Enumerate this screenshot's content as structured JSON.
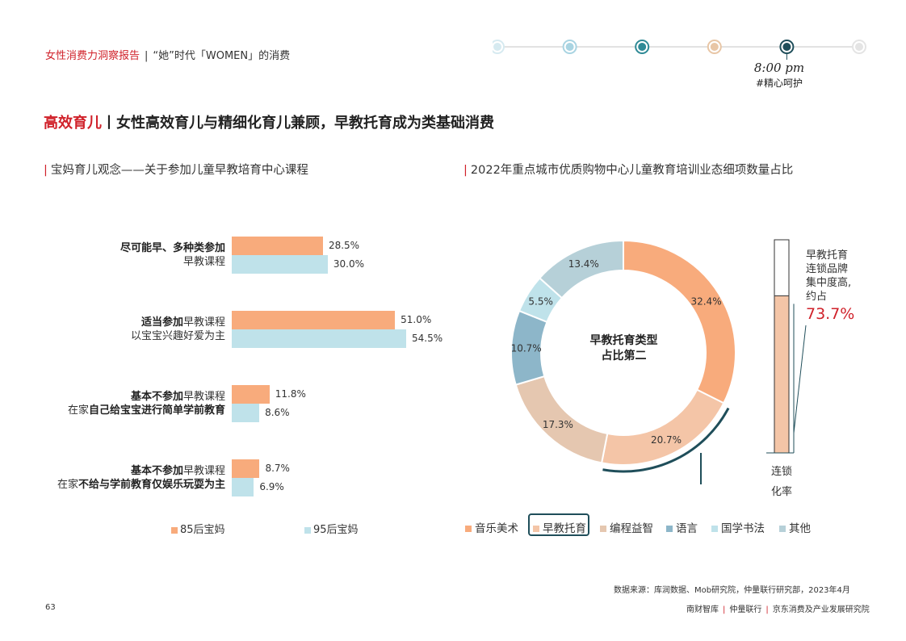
{
  "header": {
    "report_title": "女性消费力洞察报告",
    "separator": "|",
    "section_title": "“她”时代「WOMEN」的消费"
  },
  "timeline": {
    "time": "8:00 pm",
    "tag": "#精心呵护",
    "dot_colors": [
      "#d6eaf0",
      "#a9d4e2",
      "#2f8a96",
      "#e8c6a6",
      "#1f4e5a",
      "#e4e4e4"
    ],
    "active_index": 4
  },
  "heading": {
    "highlight": "高效育儿",
    "separator": "丨",
    "text": "女性高效育儿与精细化育儿兼顾，早教托育成为类基础消费"
  },
  "left_chart": {
    "subtitle": "宝妈育儿观念——关于参加儿童早教培育中心课程"
  },
  "right_chart": {
    "subtitle": "2022年重点城市优质购物中心儿童教育培训业态细项数量占比"
  },
  "donut_center": {
    "line1": "早教托育类型",
    "line2": "占比第二"
  },
  "gauge": {
    "note_lines": [
      "早教托育",
      "连锁品牌",
      "集中度高,",
      "约占"
    ],
    "value_label": "73.7%",
    "value": 73.7,
    "label_lines": [
      "连锁",
      "化率"
    ]
  },
  "colors": {
    "accent_red": "#d0212a",
    "s85": "#f8ab7c",
    "s95": "#bfe2ea",
    "music_art": "#f8ab7c",
    "early_edu": "#f4c5a7",
    "coding": "#e5c7b0",
    "language": "#8db6c9",
    "guoxue": "#bfe2ea",
    "other": "#b6d0d8",
    "dark_teal": "#1f4e5a"
  },
  "footer": {
    "source": "数据来源：库润数据、Mob研究院，仲量联行研究部，2023年4月",
    "page": "63",
    "orgs": [
      "南财智库",
      "仲量联行",
      "京东消费及产业发展研究院"
    ],
    "org_sep": "|"
  },
  "chart_data": [
    {
      "type": "bar",
      "orientation": "horizontal",
      "title": "宝妈育儿观念——关于参加儿童早教培育中心课程",
      "categories": [
        [
          {
            "t": "尽可能早、多种类参加",
            "b": true
          },
          {
            "br": true
          },
          {
            "t": "早教课程",
            "b": false
          }
        ],
        [
          {
            "t": "适当参加",
            "b": true
          },
          {
            "t": "早教课程",
            "b": false
          },
          {
            "br": true
          },
          {
            "t": "以宝宝兴趣好爱为主",
            "b": false
          }
        ],
        [
          {
            "t": "基本不参加",
            "b": true
          },
          {
            "t": "早教课程",
            "b": false
          },
          {
            "br": true
          },
          {
            "t": "在家",
            "b": false
          },
          {
            "t": "自己给宝宝进行简单学前教育",
            "b": true
          }
        ],
        [
          {
            "t": "基本不参加",
            "b": true
          },
          {
            "t": "早教课程",
            "b": false
          },
          {
            "br": true
          },
          {
            "t": "在家",
            "b": false
          },
          {
            "t": "不给与学前教育仅娱乐玩耍为主",
            "b": true
          }
        ]
      ],
      "series": [
        {
          "name": "85后宝妈",
          "values": [
            28.5,
            51.0,
            11.8,
            8.7
          ],
          "labels": [
            "28.5%",
            "51.0%",
            "11.8%",
            "8.7%"
          ],
          "color": "#f8ab7c"
        },
        {
          "name": "95后宝妈",
          "values": [
            30.0,
            54.5,
            8.6,
            6.9
          ],
          "labels": [
            "30.0%",
            "54.5%",
            "8.6%",
            "6.9%"
          ],
          "color": "#bfe2ea"
        }
      ],
      "legend": "bottom"
    },
    {
      "type": "pie",
      "variant": "donut",
      "title": "2022年重点城市优质购物中心儿童教育培训业态细项数量占比",
      "slices": [
        {
          "name": "音乐美术",
          "value": 32.4,
          "label": "32.4%",
          "color": "#f8ab7c"
        },
        {
          "name": "早教托育",
          "value": 20.7,
          "label": "20.7%",
          "color": "#f4c5a7"
        },
        {
          "name": "编程益智",
          "value": 17.3,
          "label": "17.3%",
          "color": "#e5c7b0"
        },
        {
          "name": "语言",
          "value": 10.7,
          "label": "10.7%",
          "color": "#8db6c9"
        },
        {
          "name": "国学书法",
          "value": 5.5,
          "label": "5.5%",
          "color": "#bfe2ea"
        },
        {
          "name": "其他",
          "value": 13.4,
          "label": "13.4%",
          "color": "#b6d0d8"
        }
      ],
      "highlighted": "早教托育",
      "legend": "bottom"
    }
  ]
}
